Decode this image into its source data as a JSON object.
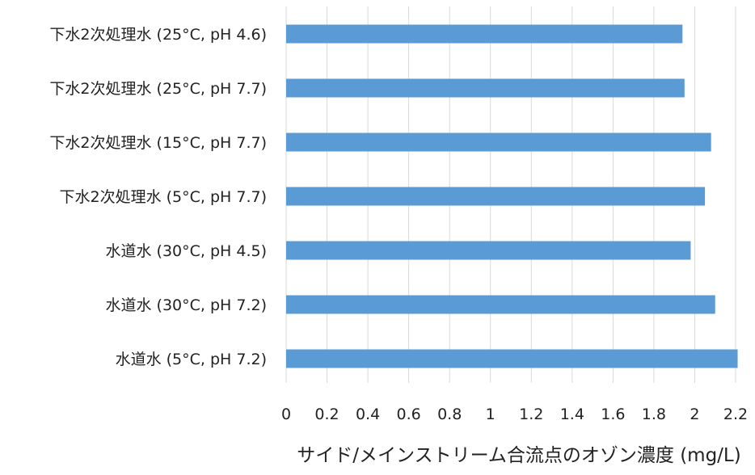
{
  "chart_data": {
    "type": "bar",
    "orientation": "horizontal",
    "categories": [
      "下水2次処理水 (25°C, pH 4.6)",
      "下水2次処理水 (25°C, pH 7.7)",
      "下水2次処理水 (15°C, pH 7.7)",
      "下水2次処理水 (5°C, pH 7.7)",
      "水道水 (30°C, pH 4.5)",
      "水道水 (30°C, pH 7.2)",
      "水道水 (5°C, pH 7.2)"
    ],
    "values": [
      1.94,
      1.95,
      2.08,
      2.05,
      1.98,
      2.1,
      2.21
    ],
    "xlabel": "サイド/メインストリーム合流点のオゾン濃度 (mg/L)",
    "ylabel": "",
    "title": "",
    "xlim": [
      0,
      2.2
    ],
    "xticks": [
      "0",
      "0.2",
      "0.4",
      "0.6",
      "0.8",
      "1",
      "1.2",
      "1.4",
      "1.6",
      "1.8",
      "2",
      "2.2"
    ],
    "grid": "vertical",
    "bar_color": "#5B9BD5",
    "grid_color": "#D9D9D9"
  }
}
